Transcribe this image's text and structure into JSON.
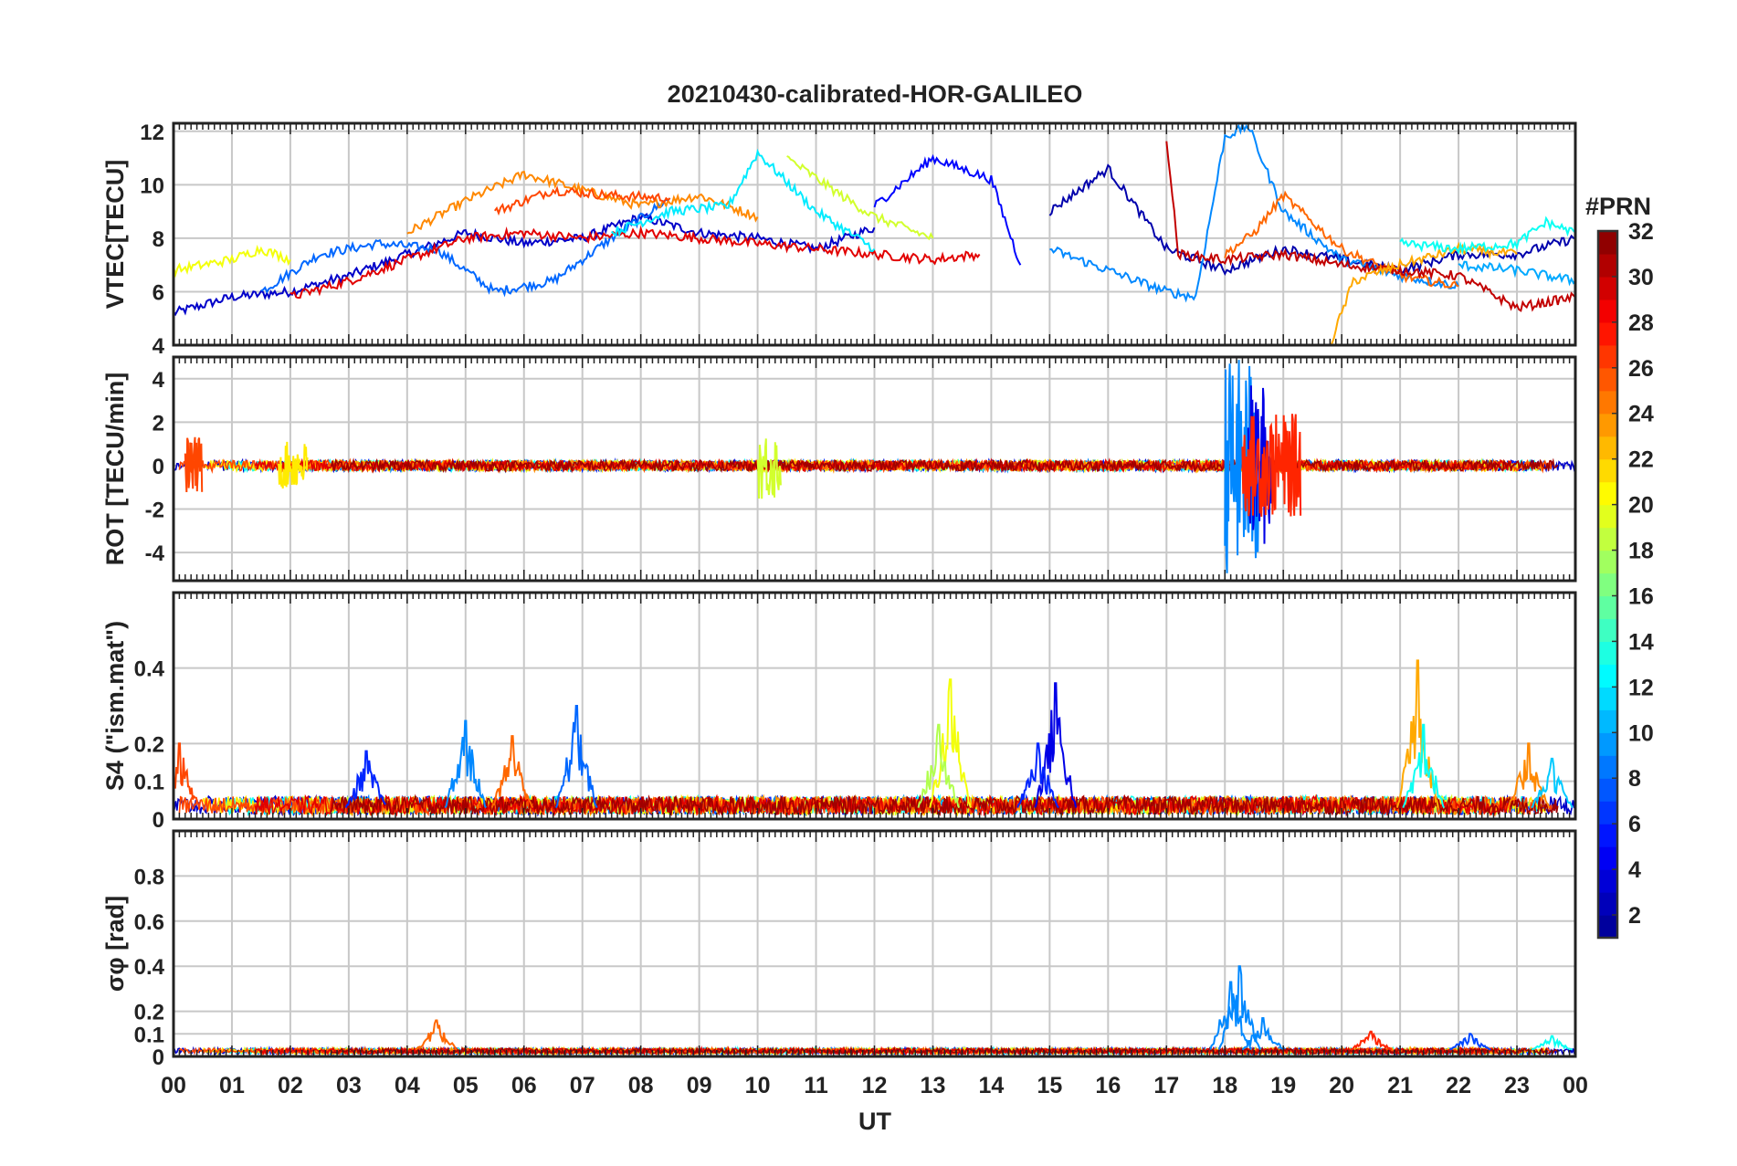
{
  "chart_data": {
    "type": "line",
    "title": "20210430-calibrated-HOR-GALILEO",
    "xlabel": "UT",
    "x_ticks": [
      "00",
      "01",
      "02",
      "03",
      "04",
      "05",
      "06",
      "07",
      "08",
      "09",
      "10",
      "11",
      "12",
      "13",
      "14",
      "15",
      "16",
      "17",
      "18",
      "19",
      "20",
      "21",
      "22",
      "23",
      "00"
    ],
    "xlim": [
      0,
      24
    ],
    "colorbar": {
      "label": "#PRN",
      "range": [
        1,
        32
      ],
      "ticks": [
        "2",
        "4",
        "6",
        "8",
        "10",
        "12",
        "14",
        "16",
        "18",
        "20",
        "22",
        "24",
        "26",
        "28",
        "30",
        "32"
      ],
      "colormap": [
        "#00008f",
        "#0000ff",
        "#0080ff",
        "#00ffff",
        "#80ff80",
        "#ffff00",
        "#ff8000",
        "#ff0000",
        "#800000"
      ]
    },
    "panels": [
      {
        "key": "vtec",
        "ylabel": "VTEC[TECU]",
        "ylim": [
          4,
          12.3
        ],
        "yticks": [
          4,
          6,
          8,
          10,
          12
        ],
        "ytick_labels": [
          "4",
          "6",
          "8",
          "10",
          "12"
        ],
        "series": [
          {
            "prn": 3,
            "points": [
              [
                0,
                5.2
              ],
              [
                1.0,
                5.8
              ],
              [
                2.0,
                6.0
              ],
              [
                3.0,
                6.6
              ],
              [
                4.0,
                7.4
              ],
              [
                5.0,
                8.2
              ],
              [
                6.0,
                7.8
              ],
              [
                7.0,
                8.0
              ],
              [
                8.0,
                8.8
              ],
              [
                9.0,
                8.2
              ],
              [
                10.0,
                8.0
              ],
              [
                11.0,
                7.6
              ],
              [
                12.0,
                8.4
              ]
            ]
          },
          {
            "prn": 8,
            "points": [
              [
                1.5,
                6.0
              ],
              [
                2.5,
                7.4
              ],
              [
                3.5,
                7.8
              ],
              [
                4.5,
                7.6
              ],
              [
                5.5,
                6.0
              ],
              [
                6.5,
                6.4
              ],
              [
                7.5,
                8.0
              ],
              [
                8.5,
                9.5
              ]
            ]
          },
          {
            "prn": 24,
            "points": [
              [
                4.0,
                8.2
              ],
              [
                5.0,
                9.4
              ],
              [
                6.0,
                10.4
              ],
              [
                7.0,
                9.8
              ],
              [
                8.0,
                9.2
              ],
              [
                9.0,
                9.6
              ],
              [
                10.0,
                8.8
              ]
            ]
          },
          {
            "prn": 26,
            "points": [
              [
                5.5,
                9.0
              ],
              [
                6.5,
                9.8
              ],
              [
                7.5,
                9.6
              ],
              [
                8.5,
                9.5
              ]
            ]
          },
          {
            "prn": 29,
            "points": [
              [
                2.0,
                5.8
              ],
              [
                3.0,
                6.4
              ],
              [
                4.0,
                7.2
              ],
              [
                5.0,
                8.0
              ],
              [
                6.0,
                8.2
              ],
              [
                7.0,
                8.0
              ],
              [
                8.0,
                8.2
              ],
              [
                9.0,
                8.0
              ],
              [
                10.0,
                7.8
              ],
              [
                11.0,
                7.6
              ],
              [
                12.0,
                7.4
              ],
              [
                13.0,
                7.2
              ],
              [
                13.8,
                7.4
              ]
            ]
          },
          {
            "prn": 20,
            "points": [
              [
                0,
                6.8
              ],
              [
                1.0,
                7.2
              ],
              [
                1.5,
                7.6
              ],
              [
                2.0,
                7.2
              ]
            ]
          },
          {
            "prn": 12,
            "points": [
              [
                7.5,
                8.2
              ],
              [
                8.5,
                9.0
              ],
              [
                9.5,
                9.2
              ],
              [
                10.0,
                11.2
              ],
              [
                11.0,
                9.0
              ],
              [
                12.0,
                7.6
              ]
            ]
          },
          {
            "prn": 19,
            "points": [
              [
                10.5,
                11.0
              ],
              [
                11.5,
                9.5
              ],
              [
                12.0,
                8.8
              ],
              [
                13.0,
                8.0
              ]
            ]
          },
          {
            "prn": 5,
            "points": [
              [
                12.0,
                9.2
              ],
              [
                13.0,
                11.0
              ],
              [
                14.0,
                10.2
              ],
              [
                14.5,
                7.0
              ]
            ]
          },
          {
            "prn": 2,
            "points": [
              [
                15.0,
                9.0
              ],
              [
                16.0,
                10.6
              ],
              [
                17.0,
                7.6
              ],
              [
                18.0,
                6.8
              ],
              [
                19.0,
                7.6
              ],
              [
                20.0,
                7.2
              ],
              [
                21.0,
                6.8
              ],
              [
                22.0,
                7.4
              ],
              [
                23.0,
                7.4
              ],
              [
                24,
                8.0
              ]
            ]
          },
          {
            "prn": 9,
            "points": [
              [
                15.0,
                7.6
              ],
              [
                16.0,
                6.8
              ],
              [
                17.0,
                6.0
              ],
              [
                17.5,
                5.8
              ],
              [
                18.0,
                11.8
              ],
              [
                18.4,
                12.2
              ],
              [
                19.0,
                9.0
              ],
              [
                20.0,
                7.2
              ],
              [
                21.0,
                6.6
              ],
              [
                22.0,
                6.2
              ]
            ]
          },
          {
            "prn": 25,
            "points": [
              [
                18.0,
                7.4
              ],
              [
                18.5,
                8.2
              ],
              [
                19.0,
                9.6
              ],
              [
                19.5,
                8.6
              ],
              [
                20.0,
                7.6
              ],
              [
                21.0,
                6.6
              ],
              [
                22.0,
                6.2
              ]
            ]
          },
          {
            "prn": 30,
            "points": [
              [
                17.0,
                11.8
              ],
              [
                17.2,
                7.4
              ],
              [
                18.0,
                7.2
              ],
              [
                19.0,
                7.4
              ],
              [
                20.0,
                7.0
              ],
              [
                21.0,
                6.8
              ],
              [
                22.0,
                6.6
              ],
              [
                23.0,
                5.4
              ],
              [
                24,
                5.8
              ]
            ]
          },
          {
            "prn": 23,
            "points": [
              [
                19.8,
                4.0
              ],
              [
                20.2,
                6.4
              ],
              [
                21.0,
                7.0
              ],
              [
                22.0,
                7.6
              ],
              [
                23.0,
                7.4
              ]
            ]
          },
          {
            "prn": 13,
            "points": [
              [
                21.0,
                7.8
              ],
              [
                22.0,
                7.6
              ],
              [
                23.0,
                7.8
              ],
              [
                23.5,
                8.6
              ],
              [
                24,
                8.2
              ]
            ]
          },
          {
            "prn": 10,
            "points": [
              [
                22.0,
                7.0
              ],
              [
                23.0,
                6.8
              ],
              [
                24,
                6.4
              ]
            ]
          }
        ]
      },
      {
        "key": "rot",
        "ylabel": "ROT [TECU/min]",
        "ylim": [
          -5.3,
          5.0
        ],
        "yticks": [
          -4,
          -2,
          0,
          2,
          4
        ],
        "ytick_labels": [
          "-4",
          "-2",
          "0",
          "2",
          "4"
        ],
        "noise_base": 0.35,
        "bursts": [
          {
            "prn": 9,
            "x": [
              18.0,
              18.6
            ],
            "amplitude": 5.0
          },
          {
            "prn": 4,
            "x": [
              18.4,
              18.8
            ],
            "amplitude": 3.8
          },
          {
            "prn": 27,
            "x": [
              18.3,
              19.3
            ],
            "amplitude": 2.4
          },
          {
            "prn": 19,
            "x": [
              10.0,
              10.4
            ],
            "amplitude": 1.6
          },
          {
            "prn": 26,
            "x": [
              0.2,
              0.5
            ],
            "amplitude": 1.4
          },
          {
            "prn": 21,
            "x": [
              1.8,
              2.3
            ],
            "amplitude": 1.1
          }
        ]
      },
      {
        "key": "s4",
        "ylabel": "S4 (\"ism.mat\")",
        "ylim": [
          0,
          0.6
        ],
        "yticks": [
          0,
          0.1,
          0.2,
          0.4
        ],
        "ytick_labels": [
          "0",
          "0.1",
          "0.2",
          "0.4"
        ],
        "noise_base": 0.03,
        "peaks": [
          {
            "prn": 26,
            "x": 0.1,
            "value": 0.2
          },
          {
            "prn": 6,
            "x": 3.3,
            "value": 0.18
          },
          {
            "prn": 9,
            "x": 5.0,
            "value": 0.26
          },
          {
            "prn": 25,
            "x": 5.8,
            "value": 0.22
          },
          {
            "prn": 8,
            "x": 6.9,
            "value": 0.3
          },
          {
            "prn": 20,
            "x": 13.3,
            "value": 0.37
          },
          {
            "prn": 18,
            "x": 13.1,
            "value": 0.25
          },
          {
            "prn": 4,
            "x": 15.1,
            "value": 0.36
          },
          {
            "prn": 6,
            "x": 14.8,
            "value": 0.2
          },
          {
            "prn": 23,
            "x": 21.3,
            "value": 0.42
          },
          {
            "prn": 13,
            "x": 21.4,
            "value": 0.25
          },
          {
            "prn": 24,
            "x": 23.2,
            "value": 0.2
          },
          {
            "prn": 11,
            "x": 23.6,
            "value": 0.16
          }
        ]
      },
      {
        "key": "sigma_phi",
        "ylabel": "σφ [rad]",
        "ylim": [
          0,
          1.0
        ],
        "yticks": [
          0,
          0.1,
          0.2,
          0.4,
          0.6,
          0.8
        ],
        "ytick_labels": [
          "0",
          "0.1",
          "0.2",
          "0.4",
          "0.6",
          "0.8"
        ],
        "noise_base": 0.03,
        "peaks": [
          {
            "prn": 9,
            "x": 18.25,
            "value": 0.4
          },
          {
            "prn": 9,
            "x": 18.1,
            "value": 0.33
          },
          {
            "prn": 9,
            "x": 18.65,
            "value": 0.17
          },
          {
            "prn": 25,
            "x": 4.5,
            "value": 0.16
          },
          {
            "prn": 27,
            "x": 20.5,
            "value": 0.11
          },
          {
            "prn": 7,
            "x": 22.2,
            "value": 0.1
          },
          {
            "prn": 13,
            "x": 23.6,
            "value": 0.09
          }
        ]
      }
    ]
  }
}
